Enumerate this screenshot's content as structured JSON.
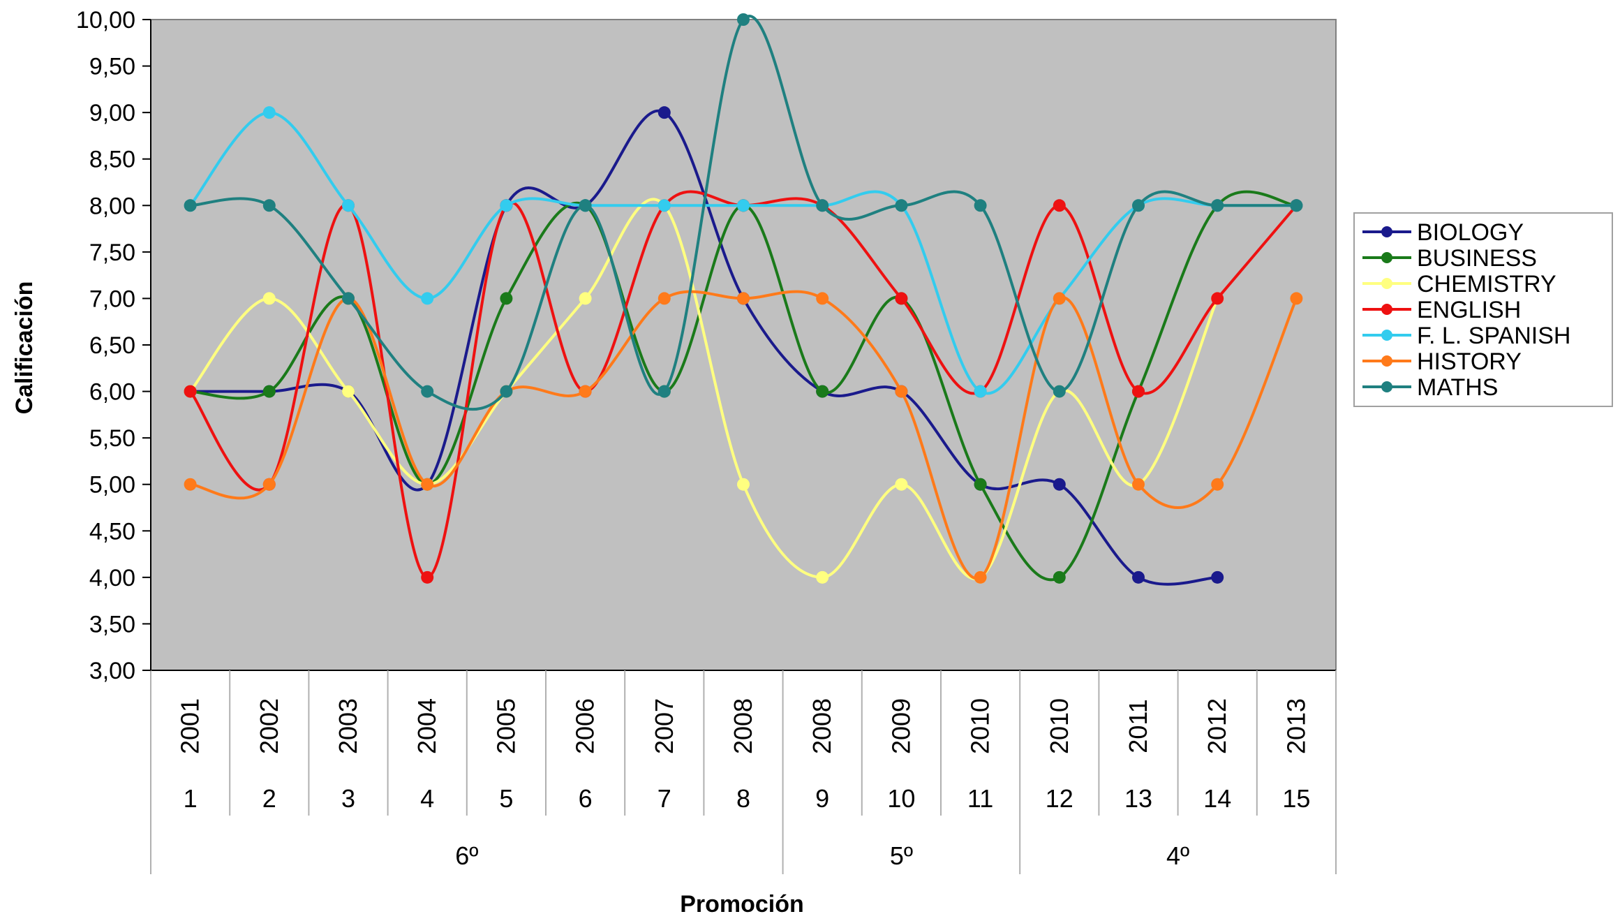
{
  "chart_data": {
    "type": "line",
    "title": "",
    "xlabel": "Promoción",
    "ylabel": "Calificación",
    "ylim": [
      3,
      10
    ],
    "yticks": [
      "3,00",
      "3,50",
      "4,00",
      "4,50",
      "5,00",
      "5,50",
      "6,00",
      "6,50",
      "7,00",
      "7,50",
      "8,00",
      "8,50",
      "9,00",
      "9,50",
      "10,00"
    ],
    "categories": [
      "1",
      "2",
      "3",
      "4",
      "5",
      "6",
      "7",
      "8",
      "9",
      "10",
      "11",
      "12",
      "13",
      "14",
      "15"
    ],
    "years": [
      "2001",
      "2002",
      "2003",
      "2004",
      "2005",
      "2006",
      "2007",
      "2008",
      "2008",
      "2009",
      "2010",
      "2010",
      "2011",
      "2012",
      "2013"
    ],
    "groups": [
      {
        "label": "6º",
        "from": 1,
        "to": 8
      },
      {
        "label": "5º",
        "from": 9,
        "to": 11
      },
      {
        "label": "4º",
        "from": 12,
        "to": 15
      }
    ],
    "plot_background": "#c0c0c0",
    "legend_position": "right",
    "smooth": true,
    "series": [
      {
        "name": "BIOLOGY",
        "color": "#1a1a8c",
        "values": [
          6,
          6,
          6,
          5,
          8,
          8,
          9,
          7,
          6,
          6,
          5,
          5,
          4,
          4,
          null
        ]
      },
      {
        "name": "BUSINESS",
        "color": "#1a7a1a",
        "values": [
          6,
          6,
          7,
          5,
          7,
          8,
          6,
          8,
          6,
          7,
          5,
          4,
          6,
          8,
          8
        ]
      },
      {
        "name": "CHEMISTRY",
        "color": "#ffff80",
        "values": [
          6,
          7,
          6,
          5,
          6,
          7,
          8,
          5,
          4,
          5,
          4,
          6,
          5,
          7,
          null
        ]
      },
      {
        "name": "ENGLISH",
        "color": "#ee1111",
        "values": [
          6,
          5,
          8,
          4,
          8,
          6,
          8,
          8,
          8,
          7,
          6,
          8,
          6,
          7,
          8
        ]
      },
      {
        "name": "F. L. SPANISH",
        "color": "#33ccee",
        "values": [
          8,
          9,
          8,
          7,
          8,
          8,
          8,
          8,
          8,
          8,
          6,
          7,
          8,
          8,
          8
        ]
      },
      {
        "name": "HISTORY",
        "color": "#ff7a1a",
        "values": [
          5,
          5,
          7,
          5,
          6,
          6,
          7,
          7,
          7,
          6,
          4,
          7,
          5,
          5,
          7
        ]
      },
      {
        "name": "MATHS",
        "color": "#1f8080",
        "values": [
          8,
          8,
          7,
          6,
          6,
          8,
          6,
          10,
          8,
          8,
          8,
          6,
          8,
          8,
          8
        ]
      }
    ]
  }
}
